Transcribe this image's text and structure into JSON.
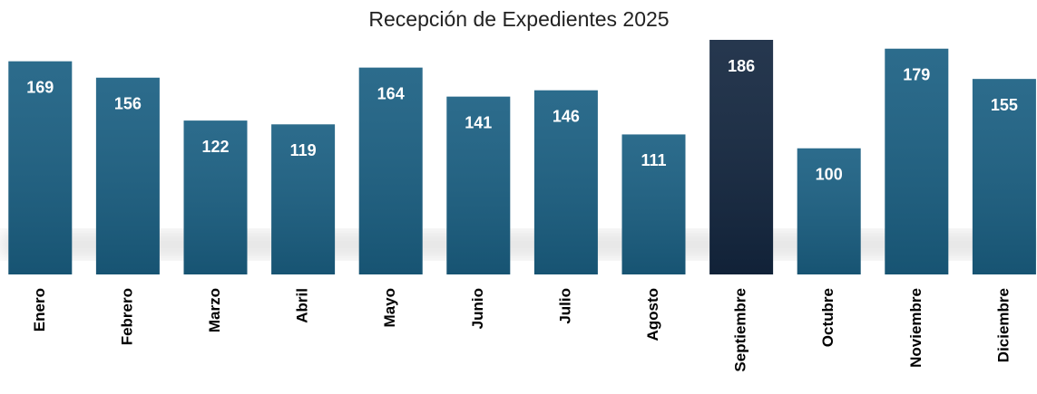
{
  "chart_data": {
    "type": "bar",
    "title": "Recepción de Expedientes 2025",
    "categories": [
      "Enero",
      "Febrero",
      "Marzo",
      "Abril",
      "Mayo",
      "Junio",
      "Julio",
      "Agosto",
      "Septiembre",
      "Octubre",
      "Noviembre",
      "Diciembre"
    ],
    "values": [
      169,
      156,
      122,
      119,
      164,
      141,
      146,
      111,
      186,
      100,
      179,
      155
    ],
    "colors": [
      "#1a5f82",
      "#1a5f82",
      "#1a5f82",
      "#1a5f82",
      "#1a5f82",
      "#1a5f82",
      "#1a5f82",
      "#1a5f82",
      "#13263f",
      "#1a5f82",
      "#1a5f82",
      "#1a5f82"
    ],
    "ylim": [
      0,
      186
    ]
  }
}
